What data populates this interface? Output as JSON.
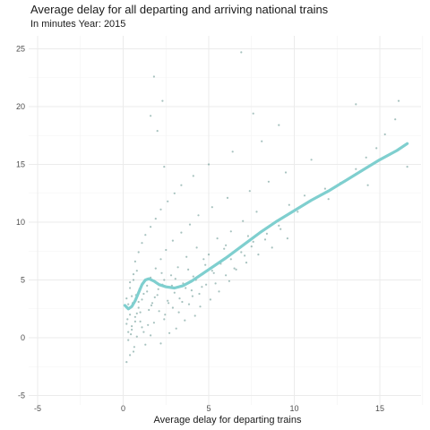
{
  "title": "Average delay for all departing and arriving national trains",
  "subtitle": "In minutes  Year: 2015",
  "chart_data": {
    "type": "scatter",
    "title": "Average delay for all departing and arriving national trains",
    "subtitle": "In minutes  Year: 2015",
    "xlabel": "Average delay for departing trains",
    "ylabel": "",
    "xlim": [
      -5,
      17.5
    ],
    "ylim": [
      -5,
      26.5
    ],
    "x_ticks": [
      -5,
      0,
      5,
      10,
      15
    ],
    "y_ticks": [
      -5,
      0,
      5,
      10,
      15,
      20,
      25
    ],
    "grid": true,
    "legend": "none",
    "point_color": "#5f8f8a",
    "trend_color": "#7fcfcf",
    "series": [
      {
        "kind": "points",
        "points": [
          [
            0.2,
            -2.1
          ],
          [
            0.4,
            -1.5
          ],
          [
            0.6,
            -1.2
          ],
          [
            1.3,
            -0.6
          ],
          [
            2.2,
            -0.5
          ],
          [
            0.3,
            -0.2
          ],
          [
            0.8,
            0.1
          ],
          [
            1.6,
            0.2
          ],
          [
            2.7,
            0.4
          ],
          [
            0.5,
            0.7
          ],
          [
            1.1,
            0.9
          ],
          [
            3.1,
            0.8
          ],
          [
            0.2,
            1.2
          ],
          [
            0.7,
            1.4
          ],
          [
            1.8,
            1.3
          ],
          [
            2.4,
            1.6
          ],
          [
            3.6,
            1.5
          ],
          [
            4.2,
            1.9
          ],
          [
            0.4,
            2.0
          ],
          [
            1.0,
            2.2
          ],
          [
            1.5,
            2.4
          ],
          [
            2.1,
            2.3
          ],
          [
            2.9,
            2.6
          ],
          [
            4.5,
            2.7
          ],
          [
            0.3,
            2.9
          ],
          [
            0.9,
            3.1
          ],
          [
            1.7,
            3.0
          ],
          [
            2.6,
            3.2
          ],
          [
            3.3,
            3.4
          ],
          [
            5.1,
            3.3
          ],
          [
            0.5,
            3.6
          ],
          [
            1.2,
            3.8
          ],
          [
            2.0,
            3.7
          ],
          [
            3.0,
            3.9
          ],
          [
            4.0,
            4.1
          ],
          [
            5.6,
            4.0
          ],
          [
            0.4,
            4.3
          ],
          [
            1.4,
            4.5
          ],
          [
            2.3,
            4.6
          ],
          [
            3.5,
            4.7
          ],
          [
            4.6,
            4.4
          ],
          [
            6.2,
            4.9
          ],
          [
            0.6,
            5.0
          ],
          [
            1.6,
            5.2
          ],
          [
            2.8,
            5.4
          ],
          [
            4.1,
            5.3
          ],
          [
            5.3,
            5.6
          ],
          [
            0.8,
            5.8
          ],
          [
            1.9,
            6.0
          ],
          [
            3.2,
            6.1
          ],
          [
            4.8,
            6.3
          ],
          [
            6.5,
            6.0
          ],
          [
            0.7,
            6.6
          ],
          [
            2.2,
            6.8
          ],
          [
            3.7,
            7.0
          ],
          [
            5.0,
            7.2
          ],
          [
            7.1,
            7.1
          ],
          [
            0.9,
            7.4
          ],
          [
            2.5,
            7.6
          ],
          [
            4.3,
            7.8
          ],
          [
            6.0,
            8.0
          ],
          [
            1.1,
            8.2
          ],
          [
            2.9,
            8.4
          ],
          [
            5.5,
            8.6
          ],
          [
            7.6,
            8.3
          ],
          [
            1.3,
            8.9
          ],
          [
            3.4,
            9.1
          ],
          [
            6.3,
            9.2
          ],
          [
            8.4,
            9.0
          ],
          [
            1.6,
            9.6
          ],
          [
            3.9,
            9.8
          ],
          [
            7.0,
            10.1
          ],
          [
            9.1,
            9.7
          ],
          [
            1.9,
            10.3
          ],
          [
            4.4,
            10.6
          ],
          [
            7.8,
            10.9
          ],
          [
            2.2,
            11.1
          ],
          [
            5.2,
            11.3
          ],
          [
            9.7,
            11.5
          ],
          [
            2.6,
            11.8
          ],
          [
            6.1,
            12.1
          ],
          [
            10.6,
            12.3
          ],
          [
            3.0,
            12.5
          ],
          [
            7.4,
            12.7
          ],
          [
            11.8,
            12.9
          ],
          [
            3.4,
            13.2
          ],
          [
            8.5,
            13.5
          ],
          [
            12.7,
            13.4
          ],
          [
            4.1,
            14.0
          ],
          [
            9.5,
            14.3
          ],
          [
            13.6,
            14.6
          ],
          [
            2.4,
            14.8
          ],
          [
            5.0,
            15.0
          ],
          [
            11.0,
            15.4
          ],
          [
            14.2,
            15.6
          ],
          [
            6.4,
            16.1
          ],
          [
            14.8,
            16.4
          ],
          [
            8.1,
            17.0
          ],
          [
            15.3,
            17.6
          ],
          [
            2.0,
            17.9
          ],
          [
            9.1,
            18.4
          ],
          [
            15.9,
            18.9
          ],
          [
            1.6,
            19.2
          ],
          [
            7.6,
            19.4
          ],
          [
            2.3,
            20.5
          ],
          [
            13.6,
            20.2
          ],
          [
            16.1,
            20.5
          ],
          [
            1.8,
            22.6
          ],
          [
            6.9,
            24.7
          ],
          [
            16.6,
            14.8
          ],
          [
            14.3,
            13.2
          ],
          [
            12.0,
            12.0
          ],
          [
            10.2,
            10.9
          ],
          [
            8.8,
            9.9
          ],
          [
            7.3,
            8.8
          ],
          [
            5.9,
            7.7
          ],
          [
            4.7,
            6.8
          ],
          [
            3.8,
            5.9
          ],
          [
            2.4,
            5.0
          ],
          [
            1.4,
            4.0
          ],
          [
            0.3,
            0.5
          ],
          [
            0.5,
            1.0
          ],
          [
            0.7,
            1.8
          ],
          [
            0.9,
            2.6
          ],
          [
            1.1,
            3.3
          ],
          [
            0.2,
            3.4
          ],
          [
            0.4,
            4.8
          ],
          [
            0.6,
            5.5
          ],
          [
            0.8,
            2.1
          ],
          [
            1.0,
            1.4
          ],
          [
            1.2,
            0.5
          ],
          [
            0.35,
            2.5
          ],
          [
            0.55,
            3.0
          ],
          [
            0.75,
            3.7
          ],
          [
            0.95,
            4.2
          ],
          [
            0.25,
            1.6
          ],
          [
            0.45,
            0.3
          ],
          [
            0.65,
            -0.8
          ],
          [
            1.45,
            1.1
          ],
          [
            1.65,
            2.8
          ],
          [
            1.85,
            3.5
          ],
          [
            2.05,
            4.2
          ],
          [
            2.25,
            5.6
          ],
          [
            2.45,
            2.0
          ],
          [
            2.65,
            3.0
          ],
          [
            2.85,
            4.5
          ],
          [
            3.05,
            5.1
          ],
          [
            3.25,
            2.2
          ],
          [
            3.45,
            3.1
          ],
          [
            3.65,
            4.3
          ],
          [
            3.85,
            2.9
          ],
          [
            4.05,
            3.6
          ],
          [
            4.25,
            5.0
          ],
          [
            4.45,
            3.8
          ],
          [
            4.65,
            5.5
          ],
          [
            4.85,
            4.6
          ],
          [
            5.2,
            5.8
          ],
          [
            5.4,
            4.7
          ],
          [
            5.7,
            6.4
          ],
          [
            6.0,
            5.4
          ],
          [
            6.3,
            6.8
          ],
          [
            6.6,
            5.9
          ],
          [
            6.9,
            7.4
          ],
          [
            7.2,
            6.5
          ],
          [
            7.5,
            7.9
          ],
          [
            7.9,
            7.2
          ],
          [
            8.3,
            8.5
          ],
          [
            8.7,
            7.8
          ],
          [
            9.2,
            9.4
          ],
          [
            9.6,
            8.6
          ]
        ]
      },
      {
        "kind": "trend",
        "points": [
          [
            0.1,
            2.8
          ],
          [
            0.3,
            2.5
          ],
          [
            0.5,
            2.7
          ],
          [
            0.7,
            3.2
          ],
          [
            0.9,
            3.9
          ],
          [
            1.1,
            4.6
          ],
          [
            1.3,
            5.0
          ],
          [
            1.5,
            5.1
          ],
          [
            1.8,
            4.9
          ],
          [
            2.1,
            4.6
          ],
          [
            2.5,
            4.4
          ],
          [
            3.0,
            4.3
          ],
          [
            3.5,
            4.5
          ],
          [
            4.0,
            4.9
          ],
          [
            5.0,
            5.9
          ],
          [
            6.0,
            6.9
          ],
          [
            7.0,
            8.0
          ],
          [
            8.0,
            9.1
          ],
          [
            9.0,
            10.1
          ],
          [
            10.0,
            11.0
          ],
          [
            11.0,
            11.9
          ],
          [
            12.0,
            12.7
          ],
          [
            13.0,
            13.6
          ],
          [
            14.0,
            14.5
          ],
          [
            15.0,
            15.4
          ],
          [
            16.0,
            16.2
          ],
          [
            16.6,
            16.8
          ]
        ]
      }
    ]
  }
}
